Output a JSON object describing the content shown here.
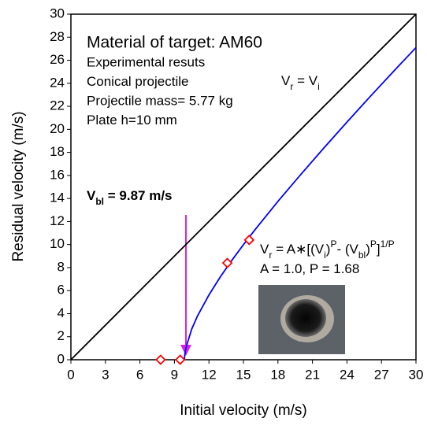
{
  "chart_data": {
    "type": "scatter",
    "title": "Material of target: AM60",
    "xlabel": "Initial velocity (m/s)",
    "ylabel": "Residual velocity (m/s)",
    "xlim": [
      0,
      30
    ],
    "ylim": [
      0,
      30
    ],
    "xticks": [
      0,
      3,
      6,
      9,
      12,
      15,
      18,
      21,
      24,
      27,
      30
    ],
    "yticks": [
      0,
      2,
      4,
      6,
      8,
      10,
      12,
      14,
      16,
      18,
      20,
      22,
      24,
      26,
      28,
      30
    ],
    "notes": [
      "Experimental resuts",
      "Conical projectile",
      "Projectile mass= 5.77 kg",
      "Plate h=10 mm"
    ],
    "annotations": [
      {
        "bold": false,
        "parts": [
          {
            "t": "V"
          },
          {
            "t": "r",
            "pos": "sub"
          },
          {
            "t": " = V"
          },
          {
            "t": "i",
            "pos": "sub"
          }
        ]
      },
      {
        "bold": true,
        "parts": [
          {
            "t": "V"
          },
          {
            "t": "bl",
            "pos": "sub"
          },
          {
            "t": " = 9.87 m/s"
          }
        ]
      },
      {
        "bold": false,
        "parts": [
          {
            "t": "V"
          },
          {
            "t": "r",
            "pos": "sub"
          },
          {
            "t": " = A∗[(V"
          },
          {
            "t": "i",
            "pos": "sub"
          },
          {
            "t": ")"
          },
          {
            "t": "P",
            "pos": "sup"
          },
          {
            "t": "- (V"
          },
          {
            "t": "bl",
            "pos": "sub"
          },
          {
            "t": ")"
          },
          {
            "t": "P",
            "pos": "sup"
          },
          {
            "t": "]"
          },
          {
            "t": "1/P",
            "pos": "sup"
          }
        ]
      },
      {
        "bold": false,
        "parts": [
          {
            "t": "A = 1.0, P = 1.68"
          }
        ]
      }
    ],
    "series": [
      {
        "mode": "line",
        "color": "#000000",
        "x": [
          0,
          30
        ],
        "values": [
          0,
          30
        ]
      },
      {
        "mode": "line",
        "color": "#0000ff",
        "x": [
          9.87,
          9.9,
          10,
          10.5,
          11,
          12,
          13,
          14,
          15,
          16,
          18,
          20,
          22,
          24,
          26,
          28,
          30
        ],
        "values": [
          0,
          0.42,
          1.04,
          2.65,
          3.79,
          5.62,
          7.21,
          8.64,
          9.99,
          11.28,
          13.75,
          16.1,
          18.39,
          20.63,
          22.83,
          24.98,
          27.1
        ]
      },
      {
        "mode": "marker",
        "color": "#ff0000",
        "x": [
          7.8,
          9.5,
          13.6,
          15.5
        ],
        "values": [
          0,
          0,
          8.4,
          10.4
        ]
      }
    ]
  }
}
